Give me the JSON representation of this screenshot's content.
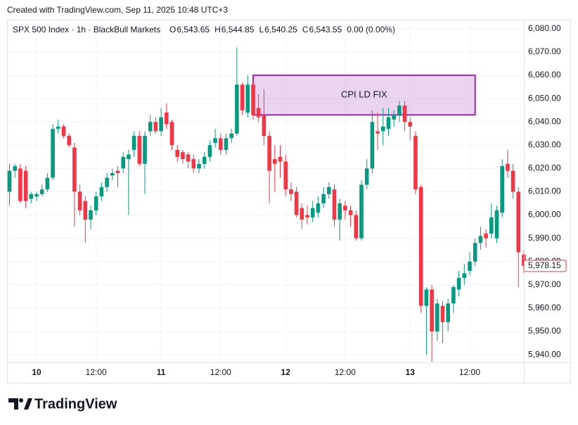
{
  "header": "Created with TradingView.com, Sep 11, 2025 10:48 UTC+3",
  "footer": "TradingView",
  "chart_data": {
    "type": "candlestick",
    "symbol": "SPX 500 Index · 1h · BlackBull Markets",
    "ohlc_legend": [
      {
        "key": "O",
        "value": {
          "value": 6543.65,
          "label": "6,543.65"
        }
      },
      {
        "key": "H",
        "value": {
          "value": 6544.85,
          "label": "6,544.85"
        }
      },
      {
        "key": "L",
        "value": {
          "value": 6540.25,
          "label": "6,540.25"
        }
      },
      {
        "key": "C",
        "value": {
          "value": 6543.55,
          "label": "6,543.55"
        }
      }
    ],
    "change": "0.00 (0.00%)",
    "up_color": "#089981",
    "down_color": "#f23645",
    "categories": [
      null,
      null,
      null,
      null,
      null,
      "10",
      null,
      null,
      null,
      null,
      null,
      null,
      null,
      null,
      null,
      null,
      "12:00",
      null,
      null,
      null,
      null,
      null,
      null,
      null,
      null,
      null,
      null,
      null,
      "11",
      null,
      null,
      null,
      null,
      null,
      null,
      null,
      null,
      null,
      null,
      "12:00",
      null,
      null,
      null,
      null,
      null,
      null,
      null,
      null,
      null,
      null,
      null,
      "12",
      null,
      null,
      null,
      null,
      null,
      null,
      null,
      null,
      null,
      null,
      "12:00",
      null,
      null,
      null,
      null,
      null,
      null,
      null,
      null,
      null,
      null,
      null,
      "13",
      null,
      null,
      null,
      null,
      null,
      null,
      null,
      null,
      null,
      null,
      "12:00",
      null,
      null,
      null,
      null,
      null,
      null,
      null,
      null,
      null,
      null
    ],
    "open": [
      6010,
      6019,
      6020,
      6019,
      6007,
      6008,
      6009,
      6011,
      6016,
      6037,
      6038,
      6034,
      6029,
      6010,
      6006,
      5998,
      6002,
      6008,
      6012,
      6017,
      6019,
      6020,
      6024,
      6028,
      6034,
      6022,
      6036,
      6040,
      6036,
      6044,
      6040,
      6028,
      6027,
      6026,
      6024,
      6020,
      6022,
      6025,
      6031,
      6033,
      6028,
      6033,
      6035,
      6056,
      6044,
      6056,
      6046,
      6043,
      6034,
      6024,
      6025,
      6023,
      6011,
      6010,
      6003,
      6000,
      5999,
      6001,
      6005,
      6009,
      6011,
      5998,
      6004,
      6002,
      6000,
      5990,
      6013,
      6020,
      6036,
      6036,
      6037,
      6041,
      6043,
      6047,
      6040,
      6034,
      6012,
      5961,
      5968,
      5950,
      5961,
      5954,
      5962,
      5968,
      5973,
      5976,
      5980,
      5988,
      5992,
      5992,
      5990,
      6001,
      6022,
      6019,
      6010,
      5983
    ],
    "high": [
      6022,
      6022,
      6022,
      6021,
      6010,
      6010,
      6013,
      6018,
      6039,
      6041,
      6039,
      6035,
      6031,
      6013,
      6008,
      6004,
      6010,
      6014,
      6018,
      6020,
      6021,
      6027,
      6028,
      6036,
      6036,
      6036,
      6043,
      6042,
      6046,
      6048,
      6041,
      6030,
      6028,
      6027,
      6026,
      6024,
      6027,
      6032,
      6037,
      6035,
      6035,
      6037,
      6072,
      6057,
      6060,
      6058,
      6052,
      6054,
      6036,
      6030,
      6030,
      6026,
      6014,
      6012,
      6005,
      6004,
      6006,
      6008,
      6012,
      6014,
      6013,
      6007,
      6006,
      6004,
      6002,
      6015,
      6024,
      6045,
      6044,
      6046,
      6046,
      6045,
      6049,
      6049,
      6042,
      6036,
      6013,
      5969,
      5970,
      5964,
      5963,
      5964,
      5970,
      5976,
      5979,
      5984,
      5990,
      5995,
      5994,
      6005,
      6004,
      6024,
      6028,
      6022,
      6012,
      5985
    ],
    "low": [
      6004,
      6016,
      6005,
      6003,
      6005,
      6006,
      6008,
      6010,
      6015,
      6035,
      6033,
      6029,
      5995,
      6000,
      5988,
      5994,
      6000,
      6006,
      6010,
      6015,
      6012,
      6018,
      6000,
      6025,
      6021,
      6009,
      6034,
      6035,
      6034,
      6037,
      6028,
      6023,
      6022,
      6020,
      6018,
      6018,
      6020,
      6023,
      6029,
      6026,
      6026,
      6031,
      6034,
      6043,
      6042,
      6041,
      6040,
      6030,
      6005,
      6010,
      6016,
      6008,
      6006,
      5999,
      5994,
      5996,
      5997,
      5999,
      6003,
      6007,
      5995,
      5989,
      5998,
      5995,
      5989,
      5989,
      6011,
      6018,
      6028,
      6030,
      6034,
      6038,
      6040,
      6036,
      6032,
      6009,
      5958,
      5940,
      5937,
      5946,
      5945,
      5950,
      5958,
      5965,
      5970,
      5974,
      5978,
      5985,
      5986,
      5990,
      5988,
      5999,
      6016,
      6007,
      5969,
      5975
    ],
    "close": [
      6019,
      6021,
      6006,
      6006,
      6009,
      6009,
      6011,
      6016,
      6037,
      6038,
      6034,
      6030,
      6010,
      6002,
      5998,
      6002,
      6008,
      6012,
      6016,
      6018,
      6018,
      6025,
      6026,
      6034,
      6022,
      6034,
      6040,
      6036,
      6042,
      6039,
      6030,
      6025,
      6024,
      6023,
      6020,
      6022,
      6025,
      6030,
      6033,
      6028,
      6033,
      6035,
      6056,
      6045,
      6056,
      6043,
      6042,
      6034,
      6019,
      6022,
      6023,
      6011,
      6009,
      6000,
      5998,
      5999,
      6003,
      6005,
      6009,
      6012,
      5998,
      6005,
      6002,
      6000,
      5990,
      6013,
      6020,
      6040,
      6035,
      6038,
      6042,
      6043,
      6047,
      6040,
      6038,
      6011,
      5961,
      5968,
      5950,
      5962,
      5954,
      5962,
      5969,
      5973,
      5975,
      5980,
      5988,
      5991,
      5990,
      5999,
      6002,
      6021,
      6019,
      6010,
      5984,
      5978.15
    ],
    "last_price": {
      "value": 5978.15,
      "label": "5,978.15"
    },
    "annotation": {
      "text": "CPI LD FIX",
      "x_start": 45,
      "x_end": 86,
      "y_top": 6060,
      "y_bottom": 6043,
      "color": "#9c27b0"
    },
    "ylim": [
      5936.7,
      6083.9
    ],
    "yticks": [
      {
        "value": 5940,
        "label": "5,940.00"
      },
      {
        "value": 5950,
        "label": "5,950.00"
      },
      {
        "value": 5960,
        "label": "5,960.00"
      },
      {
        "value": 5970,
        "label": "5,970.00"
      },
      {
        "value": 5980,
        "label": "5,980.00"
      },
      {
        "value": 5990,
        "label": "5,990.00"
      },
      {
        "value": 6000,
        "label": "6,000.00"
      },
      {
        "value": 6010,
        "label": "6,010.00"
      },
      {
        "value": 6020,
        "label": "6,020.00"
      },
      {
        "value": 6030,
        "label": "6,030.00"
      },
      {
        "value": 6040,
        "label": "6,040.00"
      },
      {
        "value": 6050,
        "label": "6,050.00"
      },
      {
        "value": 6060,
        "label": "6,060.00"
      },
      {
        "value": 6070,
        "label": "6,070.00"
      },
      {
        "value": 6080,
        "label": "6,080.00"
      }
    ],
    "grid": true
  }
}
